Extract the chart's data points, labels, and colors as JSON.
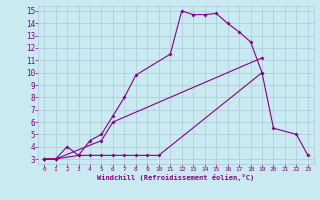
{
  "xlabel": "Windchill (Refroidissement éolien,°C)",
  "bg_color": "#c8eaf0",
  "grid_color": "#b0c8d8",
  "line_color": "#880088",
  "xlim": [
    -0.5,
    23.5
  ],
  "ylim": [
    2.6,
    15.4
  ],
  "xticks": [
    0,
    1,
    2,
    3,
    4,
    5,
    6,
    7,
    8,
    9,
    10,
    11,
    12,
    13,
    14,
    15,
    16,
    17,
    18,
    19,
    20,
    21,
    22,
    23
  ],
  "yticks": [
    3,
    4,
    5,
    6,
    7,
    8,
    9,
    10,
    11,
    12,
    13,
    14,
    15
  ],
  "s1": [
    [
      0,
      3
    ],
    [
      1,
      3
    ],
    [
      2,
      4
    ],
    [
      3,
      3.3
    ],
    [
      4,
      4.5
    ],
    [
      5,
      5
    ],
    [
      6,
      6.5
    ],
    [
      7,
      8
    ],
    [
      8,
      9.8
    ],
    [
      11,
      11.5
    ],
    [
      12,
      15
    ],
    [
      13,
      14.7
    ],
    [
      14,
      14.7
    ],
    [
      15,
      14.8
    ],
    [
      16,
      14
    ],
    [
      17,
      13.3
    ],
    [
      18,
      12.5
    ],
    [
      19,
      10
    ]
  ],
  "s2": [
    [
      0,
      3
    ],
    [
      1,
      3
    ],
    [
      3,
      3.3
    ],
    [
      4,
      3.3
    ],
    [
      5,
      3.3
    ],
    [
      6,
      3.3
    ],
    [
      7,
      3.3
    ],
    [
      8,
      3.3
    ],
    [
      9,
      3.3
    ],
    [
      10,
      3.3
    ],
    [
      19,
      10
    ],
    [
      20,
      5.5
    ],
    [
      22,
      5
    ],
    [
      23,
      3.3
    ]
  ],
  "s3": [
    [
      0,
      3
    ],
    [
      1,
      3
    ],
    [
      5,
      4.5
    ],
    [
      6,
      6
    ],
    [
      19,
      11.2
    ]
  ]
}
